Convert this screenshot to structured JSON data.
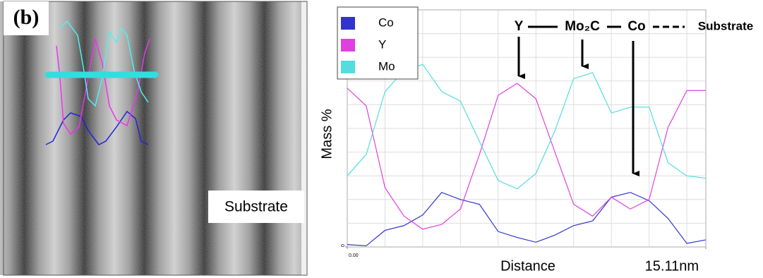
{
  "figure": {
    "panel_label": "(b)",
    "image_label": "Substrate"
  },
  "chart_data": {
    "type": "line",
    "y_label": "Mass %",
    "x_label": "Distance",
    "x": [
      0,
      0.8,
      1.59,
      2.39,
      3.18,
      3.98,
      4.77,
      5.57,
      6.36,
      7.16,
      7.95,
      8.75,
      9.54,
      10.34,
      11.13,
      11.93,
      12.72,
      13.52,
      14.31,
      15.11
    ],
    "xlim": [
      0,
      15.11
    ],
    "xticks": [
      {
        "value": 0,
        "label": "0.00"
      },
      {
        "value": 15.11,
        "label": "15.11nm"
      }
    ],
    "ylim": [
      0,
      100
    ],
    "yticks": [
      0,
      100
    ],
    "grid": true,
    "legend": "top-left",
    "series": [
      {
        "name": "Co",
        "color": "#3333cc",
        "values": [
          1,
          0.5,
          7,
          9,
          13.5,
          23,
          20,
          18,
          6.5,
          4,
          2,
          5,
          9,
          11,
          21,
          23,
          19.5,
          12,
          1.5,
          3
        ]
      },
      {
        "name": "Y",
        "color": "#e040e0",
        "values": [
          67,
          59.5,
          25,
          13,
          7.5,
          9.5,
          16,
          39,
          64,
          69,
          62.5,
          40,
          18,
          13,
          21,
          16,
          20,
          50.5,
          66,
          66
        ]
      },
      {
        "name": "Mo",
        "color": "#55dddd",
        "values": [
          30,
          39,
          65.5,
          74.5,
          77,
          65.5,
          61.5,
          44.5,
          28,
          24.5,
          31,
          49,
          71,
          73.5,
          56.5,
          59,
          59,
          35.5,
          30,
          29
        ]
      }
    ],
    "annotations": [
      "Y",
      "Mo₂C",
      "Co",
      "Substrate"
    ]
  }
}
